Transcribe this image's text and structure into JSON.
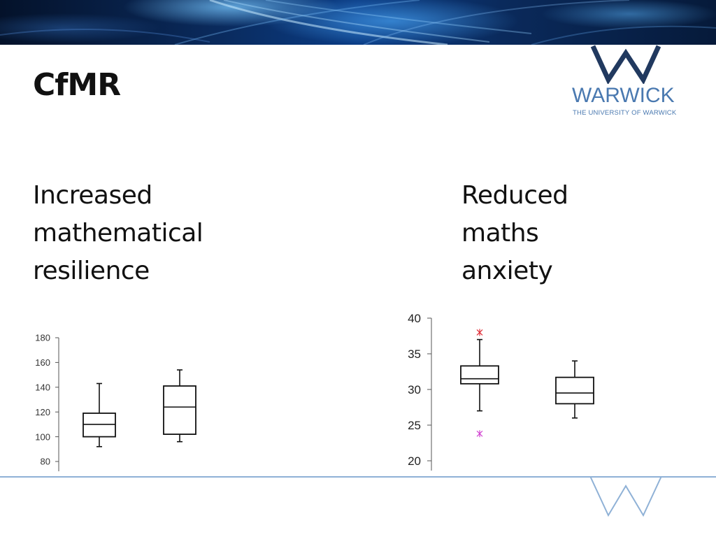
{
  "slide": {
    "title": "CfMR",
    "logo_name": "WARWICK",
    "logo_subtitle": "THE UNIVERSITY OF WARWICK",
    "left_heading": [
      "Increased",
      "mathematical",
      "resilience"
    ],
    "right_heading": [
      "Reduced",
      "maths",
      "anxiety"
    ]
  },
  "colors": {
    "logo_blue": "#4a79b0",
    "rule_blue": "#8fb1d6",
    "outlier_red": "#e0303a",
    "outlier_magenta": "#d040d0"
  },
  "chart_data": [
    {
      "type": "boxplot",
      "title": "",
      "xlabel": "",
      "ylabel": "",
      "ylim": [
        80,
        180
      ],
      "yticks": [
        "80",
        "100",
        "120",
        "140",
        "160",
        "180"
      ],
      "grid": false,
      "boxes": [
        {
          "whisker_low": 92,
          "q1": 100,
          "median": 110,
          "q3": 119,
          "whisker_high": 143,
          "outliers": []
        },
        {
          "whisker_low": 96,
          "q1": 102,
          "median": 124,
          "q3": 141,
          "whisker_high": 154,
          "outliers": []
        }
      ]
    },
    {
      "type": "boxplot",
      "title": "",
      "xlabel": "",
      "ylabel": "",
      "ylim": [
        20,
        40
      ],
      "yticks": [
        "20",
        "25",
        "30",
        "35",
        "40"
      ],
      "grid": false,
      "boxes": [
        {
          "whisker_low": 27,
          "q1": 30.8,
          "median": 31.5,
          "q3": 33.3,
          "whisker_high": 37,
          "outliers": [
            {
              "value": 38,
              "color": "red"
            },
            {
              "value": 23.8,
              "color": "magenta"
            }
          ]
        },
        {
          "whisker_low": 26,
          "q1": 28,
          "median": 29.5,
          "q3": 31.7,
          "whisker_high": 34,
          "outliers": []
        }
      ]
    }
  ]
}
